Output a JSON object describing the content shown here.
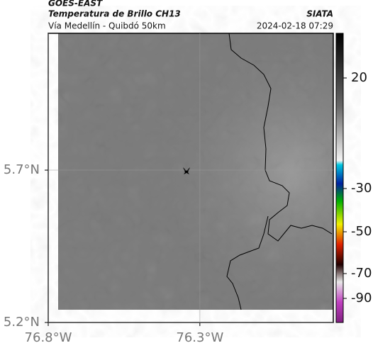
{
  "header": {
    "source": "GOES-EAST",
    "title": "Temperatura de Brillo CH13",
    "credit": "SIATA",
    "subtitle": "Vía Medellín - Quibdó 50km",
    "datetime": "2024-02-18 07:29"
  },
  "map": {
    "xlim": [
      -76.8,
      -75.86
    ],
    "ylim": [
      5.2,
      6.149
    ],
    "xticks": [
      {
        "value": -76.8,
        "label": "76.8°W"
      },
      {
        "value": -76.3,
        "label": "76.3°W"
      }
    ],
    "yticks": [
      {
        "value": 5.7,
        "label": "5.7°N"
      },
      {
        "value": 5.2,
        "label": "5.2°N"
      }
    ]
  },
  "colorbar": {
    "ticks": [
      20,
      -30,
      -50,
      -70,
      -90
    ]
  }
}
